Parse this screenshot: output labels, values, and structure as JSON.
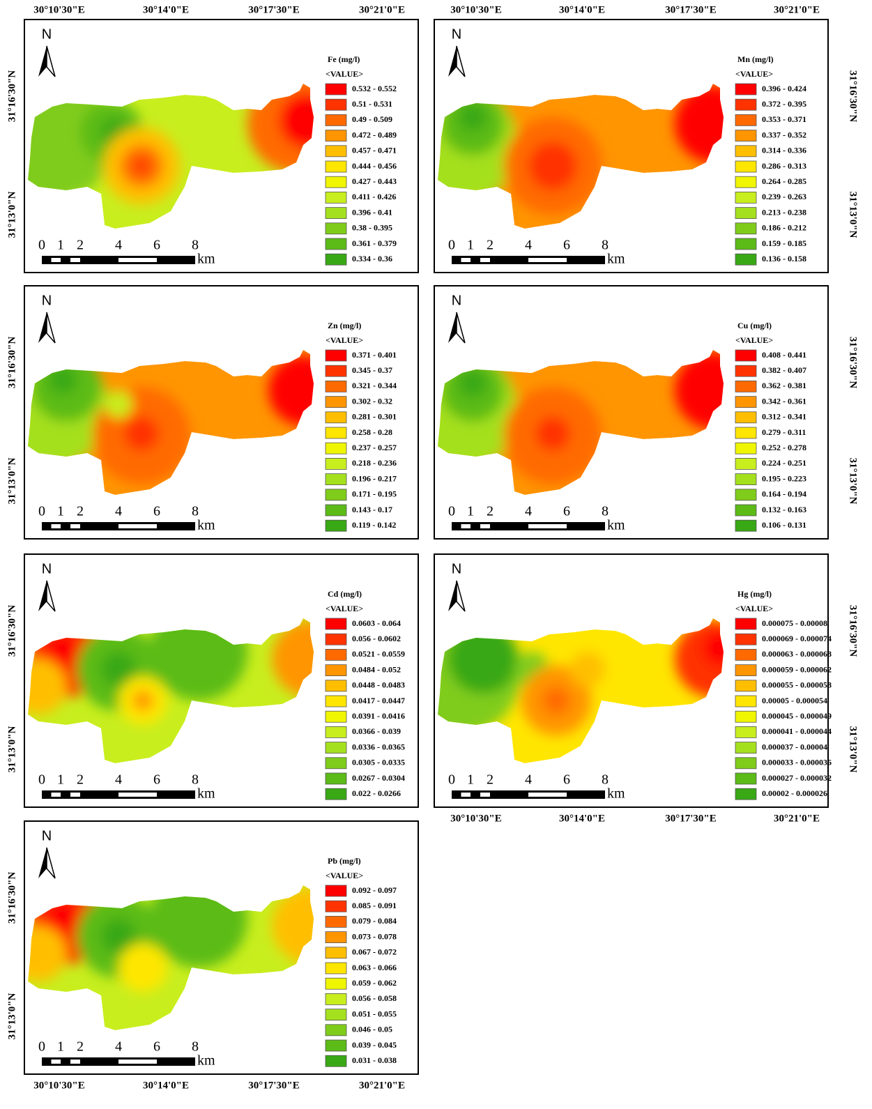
{
  "top_lon_labels_left": [
    "30°10'30\"E",
    "30°14'0\"E",
    "30°17'30\"E",
    "30°21'0\"E"
  ],
  "top_lon_labels_right": [
    "30°10'30\"E",
    "30°14'0\"E",
    "30°17'30\"E",
    "30°21'0\"E"
  ],
  "bottom_lon_labels_right": [
    "30°10'30\"E",
    "30°14'0\"E",
    "30°17'30\"E",
    "30°21'0\"E"
  ],
  "bottom_lon_labels_left": [
    "30°10'30\"E",
    "30°14'0\"E",
    "30°17'30\"E",
    "30°21'0\"E"
  ],
  "legend_colors": [
    "#ff0000",
    "#ff3300",
    "#ff6a00",
    "#ff9500",
    "#ffbf00",
    "#ffe600",
    "#f0f500",
    "#c8ee1e",
    "#a5e01e",
    "#80cc1a",
    "#5cbb17",
    "#38a814"
  ],
  "panels": [
    {
      "north": "N",
      "legend_title": "Fe (mg/l)",
      "value_header": "<VALUE>",
      "classes": [
        "0.532 - 0.552",
        "0.51 - 0.531",
        "0.49 - 0.509",
        "0.472 - 0.489",
        "0.457 - 0.471",
        "0.444 - 0.456",
        "0.427 - 0.443",
        "0.411 - 0.426",
        "0.396 - 0.41",
        "0.38 - 0.395",
        "0.361 - 0.379",
        "0.334 - 0.36"
      ],
      "scale_labels": [
        "0",
        "1",
        "2",
        "4",
        "6",
        "8"
      ],
      "scale_unit": "km",
      "lat_labels": [
        "31°16'30\"N",
        "31°13'0\"N"
      ]
    },
    {
      "north": "N",
      "legend_title": "Mn (mg/l)",
      "value_header": "<VALUE>",
      "classes": [
        "0.396 - 0.424",
        "0.372 - 0.395",
        "0.353 - 0.371",
        "0.337 - 0.352",
        "0.314 - 0.336",
        "0.286 - 0.313",
        "0.264 - 0.285",
        "0.239 - 0.263",
        "0.213 - 0.238",
        "0.186 - 0.212",
        "0.159 - 0.185",
        "0.136 - 0.158"
      ],
      "scale_labels": [
        "0",
        "1",
        "2",
        "4",
        "6",
        "8"
      ],
      "scale_unit": "km",
      "lat_labels": [
        "31°16'30\"N",
        "31°13'0\"N"
      ]
    },
    {
      "north": "N",
      "legend_title": "Zn (mg/l)",
      "value_header": "<VALUE>",
      "classes": [
        "0.371 - 0.401",
        "0.345 - 0.37",
        "0.321 - 0.344",
        "0.302 - 0.32",
        "0.281 - 0.301",
        "0.258 - 0.28",
        "0.237 - 0.257",
        "0.218 - 0.236",
        "0.196 - 0.217",
        "0.171 - 0.195",
        "0.143 - 0.17",
        "0.119 - 0.142"
      ],
      "scale_labels": [
        "0",
        "1",
        "2",
        "4",
        "6",
        "8"
      ],
      "scale_unit": "km",
      "lat_labels": [
        "31°16'30\"N",
        "31°13'0\"N"
      ]
    },
    {
      "north": "N",
      "legend_title": "Cu (mg/l)",
      "value_header": "<VALUE>",
      "classes": [
        "0.408 - 0.441",
        "0.382 - 0.407",
        "0.362 - 0.381",
        "0.342 - 0.361",
        "0.312 - 0.341",
        "0.279 - 0.311",
        "0.252 - 0.278",
        "0.224 - 0.251",
        "0.195 - 0.223",
        "0.164 - 0.194",
        "0.132 - 0.163",
        "0.106 - 0.131"
      ],
      "scale_labels": [
        "0",
        "1",
        "2",
        "4",
        "6",
        "8"
      ],
      "scale_unit": "km",
      "lat_labels": [
        "31°16'30\"N",
        "31°13'0\"N"
      ]
    },
    {
      "north": "N",
      "legend_title": "Cd (mg/l)",
      "value_header": "<VALUE>",
      "classes": [
        "0.0603 - 0.064",
        "0.056 - 0.0602",
        "0.0521 - 0.0559",
        "0.0484 - 0.052",
        "0.0448 - 0.0483",
        "0.0417 - 0.0447",
        "0.0391 - 0.0416",
        "0.0366 - 0.039",
        "0.0336 - 0.0365",
        "0.0305 - 0.0335",
        "0.0267 - 0.0304",
        "0.022 - 0.0266"
      ],
      "scale_labels": [
        "0",
        "1",
        "2",
        "4",
        "6",
        "8"
      ],
      "scale_unit": "km",
      "lat_labels": [
        "31°16'30\"N",
        "31°13'0\"N"
      ]
    },
    {
      "north": "N",
      "legend_title": "Hg (mg/l)",
      "value_header": "<VALUE>",
      "classes": [
        "0.000075 - 0.00008",
        "0.000069 - 0.000074",
        "0.000063 - 0.000068",
        "0.000059 - 0.000062",
        "0.000055 - 0.000058",
        "0.00005 - 0.000054",
        "0.000045 - 0.000049",
        "0.000041 - 0.000044",
        "0.000037 - 0.00004",
        "0.000033 - 0.000036",
        "0.000027 - 0.000032",
        "0.00002 - 0.000026"
      ],
      "scale_labels": [
        "0",
        "1",
        "2",
        "4",
        "6",
        "8"
      ],
      "scale_unit": "km",
      "lat_labels": [
        "31°16'30\"N",
        "31°13'0\"N"
      ]
    },
    {
      "north": "N",
      "legend_title": "Pb (mg/l)",
      "value_header": "<VALUE>",
      "classes": [
        "0.092 - 0.097",
        "0.085 - 0.091",
        "0.079 - 0.084",
        "0.073 - 0.078",
        "0.067 - 0.072",
        "0.063 - 0.066",
        "0.059 - 0.062",
        "0.056 - 0.058",
        "0.051 - 0.055",
        "0.046 - 0.05",
        "0.039 - 0.045",
        "0.031 - 0.038"
      ],
      "scale_labels": [
        "0",
        "1",
        "2",
        "4",
        "6",
        "8"
      ],
      "scale_unit": "km",
      "lat_labels": [
        "31°16'30\"N",
        "31°13'0\"N"
      ]
    }
  ]
}
